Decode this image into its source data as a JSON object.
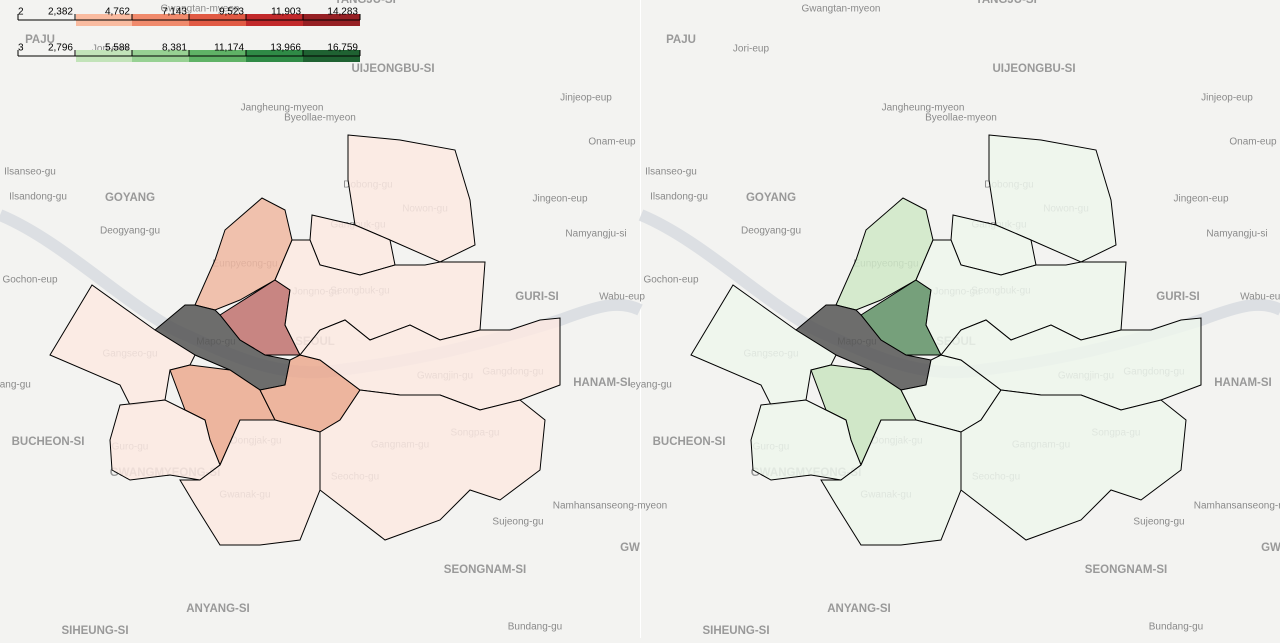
{
  "maps": [
    {
      "legend": {
        "ticks": [
          {
            "value": 2,
            "label": "2"
          },
          {
            "value": 2382,
            "label": "2,382"
          },
          {
            "value": 4762,
            "label": "4,762"
          },
          {
            "value": 7143,
            "label": "7,143"
          },
          {
            "value": 9523,
            "label": "9,523"
          },
          {
            "value": 11903,
            "label": "11,903"
          },
          {
            "value": 14283,
            "label": "14,283"
          }
        ],
        "colors": [
          "#fde0d2",
          "#f9bba0",
          "#f08a6c",
          "#e15a44",
          "#c2292b",
          "#962024"
        ]
      },
      "district_colors": [
        "#fbe9e2",
        "#fbe9e2",
        "#eeb7a1",
        "#c0716e",
        "#fbe9e2",
        "#555555",
        "#fbe9e2",
        "#eba98f",
        "#eba98f",
        "#fbe9e2",
        "#fbe9e2",
        "#fbe9e2",
        "#fbe9e2"
      ]
    },
    {
      "legend": {
        "ticks": [
          {
            "value": 3,
            "label": "3"
          },
          {
            "value": 2796,
            "label": "2,796"
          },
          {
            "value": 5588,
            "label": "5,588"
          },
          {
            "value": 8381,
            "label": "8,381"
          },
          {
            "value": 11174,
            "label": "11,174"
          },
          {
            "value": 13966,
            "label": "13,966"
          },
          {
            "value": 16759,
            "label": "16,759"
          }
        ],
        "colors": [
          "#e3f1dd",
          "#c2e3b9",
          "#97d193",
          "#5fb266",
          "#2f8a46",
          "#1f6232"
        ]
      },
      "district_colors": [
        "#edf6ec",
        "#edf6ec",
        "#cfe8c7",
        "#5f9166",
        "#edf6ec",
        "#555555",
        "#edf6ec",
        "#c9e4c1",
        "#edf6ec",
        "#edf6ec",
        "#edf6ec",
        "#edf6ec",
        "#edf6ec"
      ]
    }
  ],
  "place_labels": [
    "PAJU",
    "Jori-eup",
    "Gwangtan-myeon",
    "YANGJU-SI",
    "UIJEONGBU-SI",
    "Jangheung-myeon",
    "Jinjeop-eup",
    "Byeollae-myeon",
    "Onam-eup",
    "Ilsanseo-gu",
    "Ilsandong-gu",
    "GOYANG",
    "Dobong-gu",
    "Nowon-gu",
    "Jingeon-eup",
    "Deogyang-gu",
    "Gangbuk-gu",
    "Namyangju-si",
    "Gochon-eup",
    "Eunpyeong-gu",
    "Seongbuk-gu",
    "GURI-SI",
    "Wabu-eup",
    "Jongno-gu",
    "Mapo-gu",
    "SEOUL",
    "Gangseo-gu",
    "Gwangjin-gu",
    "Gangdong-gu",
    "HANAM-SI",
    "eyang-gu",
    "BUCHEON-SI",
    "Guro-gu",
    "Dongjak-gu",
    "Gangnam-gu",
    "Songpa-gu",
    "GWANGMYEONG-SI",
    "Gwanak-gu",
    "Seocho-gu",
    "Namhansanseong-myeon",
    "Sujeong-gu",
    "SEONGNAM-SI",
    "ANYANG-SI",
    "SIHEUNG-SI",
    "Bundang-gu",
    "GW"
  ]
}
